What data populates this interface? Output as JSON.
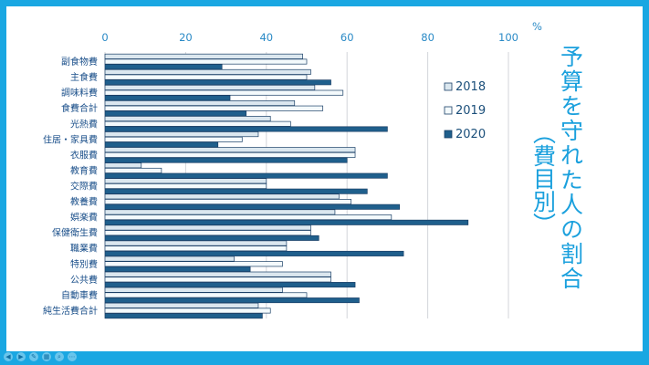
{
  "chart_data": {
    "type": "bar",
    "orientation": "horizontal",
    "title": "予算を守れた人の割合",
    "subtitle": "（費目別）",
    "unit": "%",
    "xlim": [
      0,
      100
    ],
    "ticks": [
      0,
      20,
      40,
      60,
      80,
      100
    ],
    "grid": true,
    "legend_position": "right",
    "categories": [
      "副食物費",
      "主食費",
      "調味料費",
      "食費合計",
      "光熱費",
      "住居・家具費",
      "衣服費",
      "教育費",
      "交際費",
      "教養費",
      "娯楽費",
      "保健衛生費",
      "職業費",
      "特別費",
      "公共費",
      "自動車費",
      "純生活費合計"
    ],
    "series": [
      {
        "name": "2018",
        "color": "#dbe7ef",
        "values": [
          49,
          51,
          52,
          47,
          41,
          38,
          62,
          9,
          40,
          58,
          57,
          51,
          45,
          32,
          56,
          44,
          38
        ]
      },
      {
        "name": "2019",
        "color": "#f4fafc",
        "values": [
          50,
          50,
          59,
          54,
          46,
          34,
          62,
          14,
          40,
          61,
          71,
          51,
          45,
          44,
          56,
          50,
          41
        ]
      },
      {
        "name": "2020",
        "color": "#1f5f8c",
        "values": [
          29,
          56,
          31,
          35,
          70,
          28,
          60,
          70,
          65,
          73,
          90,
          53,
          74,
          36,
          62,
          63,
          39
        ]
      }
    ]
  },
  "controls": [
    "◀",
    "▶",
    "✎",
    "▦",
    "⌕",
    "⋯"
  ]
}
